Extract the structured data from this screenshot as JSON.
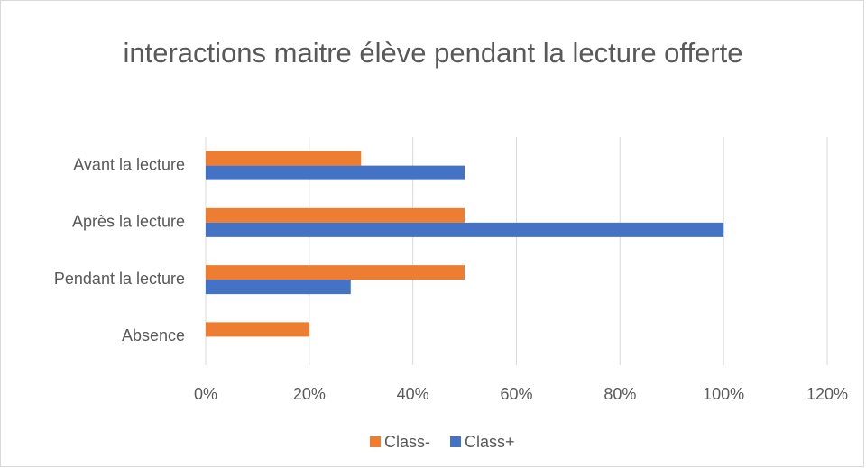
{
  "chart_data": {
    "type": "bar",
    "orientation": "horizontal",
    "title": "interactions maitre élève pendant la lecture offerte",
    "categories": [
      "Avant la lecture",
      "Après la lecture",
      "Pendant la lecture",
      "Absence"
    ],
    "series": [
      {
        "name": "Class-",
        "color": "#ed7d31",
        "values": [
          30,
          50,
          50,
          20
        ]
      },
      {
        "name": "Class+",
        "color": "#4472c4",
        "values": [
          50,
          100,
          28,
          0
        ]
      }
    ],
    "xlim": [
      0,
      120
    ],
    "xticks": [
      {
        "value": 0,
        "label": "0%"
      },
      {
        "value": 20,
        "label": "20%"
      },
      {
        "value": 40,
        "label": "40%"
      },
      {
        "value": 60,
        "label": "60%"
      },
      {
        "value": 80,
        "label": "80%"
      },
      {
        "value": 100,
        "label": "100%"
      },
      {
        "value": 120,
        "label": "120%"
      }
    ],
    "grid": true,
    "legend": "bottom"
  }
}
